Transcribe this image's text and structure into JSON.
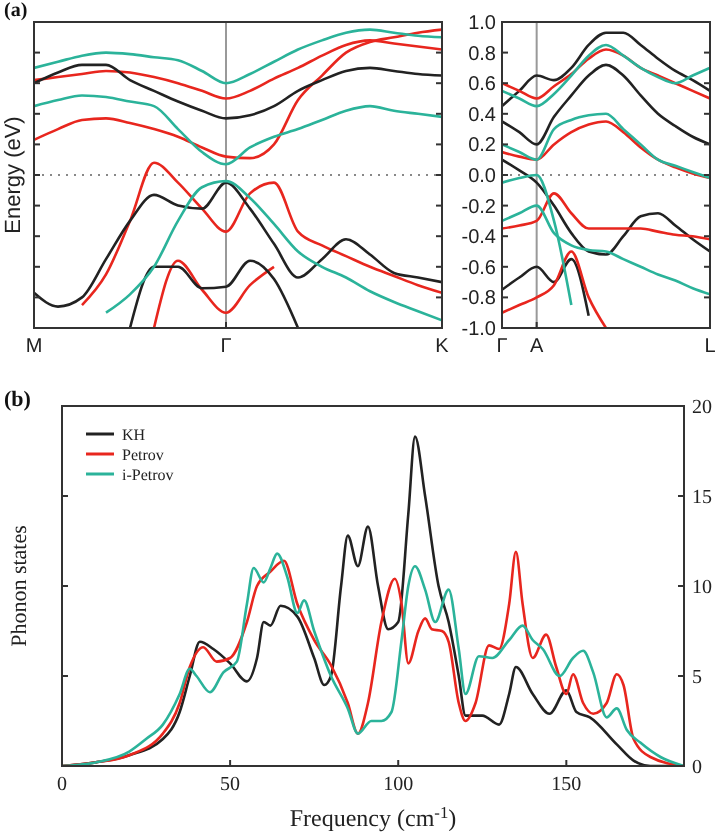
{
  "chart_data": [
    {
      "type": "line",
      "title": "(a)",
      "ylabel": "Energy (eV)",
      "categories": [
        "M",
        null,
        null,
        null,
        null,
        null,
        null,
        null,
        "Γ",
        null,
        null,
        null,
        null,
        null,
        null,
        null,
        null,
        "K"
      ],
      "ylim": [
        -1,
        1
      ],
      "yticks": [
        {
          "value": -1,
          "label": null
        },
        {
          "value": -0.8,
          "label": null
        },
        {
          "value": -0.6,
          "label": null
        },
        {
          "value": -0.4,
          "label": null
        },
        {
          "value": -0.2,
          "label": null
        },
        {
          "value": 0,
          "label": null
        },
        {
          "value": 0.2,
          "label": null
        },
        {
          "value": 0.4,
          "label": null
        },
        {
          "value": 0.6,
          "label": null
        },
        {
          "value": 0.8,
          "label": null
        },
        {
          "value": 1,
          "label": null
        }
      ],
      "tick_labels": "x",
      "ref_lines": [
        {
          "axis": "y",
          "value": 0,
          "line_style": "dotted",
          "color": "#888888"
        },
        {
          "axis": "x",
          "value": "Γ",
          "color": "#999999"
        }
      ],
      "series": [
        {
          "color": "#e8261e",
          "values": [
            0.23,
            0.3,
            0.36,
            0.37,
            0.34,
            0.3,
            0.25,
            0.18,
            0.12,
            0.11,
            0.2,
            0.49,
            0.65,
            0.8,
            0.87,
            0.9,
            0.93,
            0.95
          ]
        },
        {
          "color": "#e8261e",
          "values": [
            null,
            null,
            -0.85,
            -0.65,
            -0.3,
            0.08,
            -0.05,
            -0.22,
            -0.37,
            -0.12,
            -0.05,
            -0.37,
            -0.46,
            -0.53,
            -0.6,
            -0.66,
            -0.72,
            -0.77
          ]
        },
        {
          "color": "#e8261e",
          "values": [
            0.62,
            0.64,
            0.66,
            0.68,
            0.67,
            0.64,
            0.6,
            0.55,
            0.5,
            0.55,
            0.63,
            0.7,
            0.78,
            0.85,
            0.88,
            0.86,
            0.84,
            0.82
          ]
        },
        {
          "color": "#e8261e",
          "values": [
            null,
            null,
            null,
            null,
            null,
            -1.0,
            -0.56,
            -0.75,
            -0.9,
            -0.72,
            -0.6,
            null,
            null,
            null,
            null,
            null,
            null,
            null
          ]
        },
        {
          "color": "#222222",
          "values": [
            -0.77,
            -0.86,
            -0.8,
            -0.55,
            -0.3,
            -0.13,
            -0.2,
            -0.22,
            -0.05,
            -0.22,
            -0.45,
            -0.67,
            -0.55,
            -0.42,
            -0.52,
            -0.64,
            -0.67,
            -0.7
          ]
        },
        {
          "color": "#222222",
          "values": [
            0.6,
            0.67,
            0.72,
            0.72,
            0.62,
            0.55,
            0.48,
            0.42,
            0.37,
            0.39,
            0.45,
            0.55,
            0.62,
            0.68,
            0.7,
            0.68,
            0.66,
            0.65
          ]
        },
        {
          "color": "#222222",
          "values": [
            null,
            null,
            null,
            null,
            -1.0,
            -0.6,
            -0.6,
            -0.74,
            -0.73,
            -0.56,
            -0.68,
            -1.0,
            null,
            null,
            null,
            null,
            null,
            null
          ]
        },
        {
          "color": "#2bb39a",
          "values": [
            null,
            null,
            null,
            -0.9,
            -0.78,
            -0.6,
            -0.3,
            -0.08,
            -0.04,
            -0.15,
            -0.32,
            -0.5,
            -0.6,
            -0.67,
            -0.76,
            -0.83,
            -0.89,
            -0.95
          ]
        },
        {
          "color": "#2bb39a",
          "values": [
            0.45,
            0.49,
            0.52,
            0.51,
            0.48,
            0.45,
            0.3,
            0.15,
            0.07,
            0.18,
            0.25,
            0.3,
            0.36,
            0.42,
            0.45,
            0.42,
            0.4,
            0.38
          ]
        },
        {
          "color": "#2bb39a",
          "values": [
            0.7,
            0.74,
            0.78,
            0.8,
            0.79,
            0.77,
            0.75,
            0.68,
            0.6,
            0.66,
            0.74,
            0.82,
            0.88,
            0.93,
            0.95,
            0.93,
            0.91,
            0.9
          ]
        }
      ]
    },
    {
      "type": "line",
      "categories": [
        "Γ",
        null,
        "A",
        null,
        null,
        null,
        null,
        null,
        null,
        null,
        null,
        null,
        "L"
      ],
      "ylim": [
        -1,
        1
      ],
      "yticks": [
        {
          "value": -1,
          "label": "-1.0"
        },
        {
          "value": -0.8,
          "label": "-0.8"
        },
        {
          "value": -0.6,
          "label": "-0.6"
        },
        {
          "value": -0.4,
          "label": "-0.4"
        },
        {
          "value": -0.2,
          "label": "-0.2"
        },
        {
          "value": 0,
          "label": "0.0"
        },
        {
          "value": 0.2,
          "label": "0.2"
        },
        {
          "value": 0.4,
          "label": "0.4"
        },
        {
          "value": 0.6,
          "label": "0.6"
        },
        {
          "value": 0.8,
          "label": "0.8"
        },
        {
          "value": 1,
          "label": "1.0"
        }
      ],
      "ref_lines": [
        {
          "axis": "y",
          "value": 0,
          "line_style": "dotted",
          "color": "#888888"
        },
        {
          "axis": "x",
          "value": "A",
          "color": "#999999"
        }
      ],
      "series": [
        {
          "color": "#222222",
          "values": [
            0.35,
            0.28,
            0.2,
            0.38,
            0.52,
            0.65,
            0.72,
            0.65,
            0.52,
            0.4,
            0.32,
            0.25,
            0.2
          ]
        },
        {
          "color": "#222222",
          "values": [
            0.1,
            0.03,
            -0.05,
            -0.2,
            -0.38,
            -0.5,
            -0.52,
            -0.4,
            -0.27,
            -0.25,
            -0.33,
            -0.42,
            -0.5
          ]
        },
        {
          "color": "#222222",
          "values": [
            -0.75,
            -0.67,
            -0.6,
            -0.7,
            -0.55,
            -0.92,
            null,
            null,
            null,
            null,
            null,
            null,
            null
          ]
        },
        {
          "color": "#222222",
          "values": [
            0.45,
            0.55,
            0.65,
            0.62,
            0.7,
            0.85,
            0.93,
            0.93,
            0.85,
            0.76,
            0.68,
            0.62,
            0.55
          ]
        },
        {
          "color": "#e8261e",
          "values": [
            0.15,
            0.12,
            0.1,
            0.2,
            0.28,
            0.33,
            0.35,
            0.28,
            0.18,
            0.1,
            0.05,
            0.01,
            -0.02
          ]
        },
        {
          "color": "#e8261e",
          "values": [
            -0.35,
            -0.33,
            -0.3,
            -0.12,
            -0.25,
            -0.35,
            -0.35,
            -0.35,
            -0.35,
            -0.37,
            -0.39,
            -0.4,
            -0.42
          ]
        },
        {
          "color": "#e8261e",
          "values": [
            -0.9,
            -0.85,
            -0.8,
            -0.72,
            -0.5,
            -0.8,
            -1.0,
            null,
            null,
            null,
            null,
            null,
            null
          ]
        },
        {
          "color": "#e8261e",
          "values": [
            0.6,
            0.55,
            0.5,
            0.58,
            0.66,
            0.76,
            0.82,
            0.78,
            0.7,
            0.65,
            0.6,
            0.55,
            0.5
          ]
        },
        {
          "color": "#2bb39a",
          "values": [
            -0.3,
            -0.25,
            -0.2,
            -0.38,
            -0.46,
            -0.49,
            -0.5,
            -0.55,
            -0.6,
            -0.65,
            -0.69,
            -0.74,
            -0.78
          ]
        },
        {
          "color": "#2bb39a",
          "values": [
            0.2,
            0.15,
            0.1,
            0.3,
            0.36,
            0.39,
            0.4,
            0.3,
            0.2,
            0.1,
            0.06,
            0.02,
            -0.02
          ]
        },
        {
          "color": "#2bb39a",
          "values": [
            0.55,
            0.5,
            0.45,
            0.53,
            0.65,
            0.78,
            0.85,
            0.78,
            0.7,
            0.64,
            0.6,
            0.65,
            0.7
          ]
        },
        {
          "color": "#2bb39a",
          "values": [
            -0.05,
            -0.02,
            0.0,
            -0.3,
            -0.85,
            null,
            null,
            null,
            null,
            null,
            null,
            null,
            null
          ]
        }
      ]
    },
    {
      "type": "line",
      "title": "(b)",
      "xlabel": "Frequency (cm$^{-1}$)",
      "ylabel": "Phonon states",
      "xlim": [
        0,
        185
      ],
      "xticks": [
        0,
        50,
        100,
        150
      ],
      "ylim": [
        0,
        20
      ],
      "yticks": [
        0,
        5,
        10,
        15,
        20
      ],
      "legend": "top left",
      "x": [
        0,
        10,
        20,
        30,
        35,
        38,
        41,
        45,
        50,
        55,
        58,
        60,
        62,
        65,
        70,
        75,
        78,
        80,
        83,
        85,
        88,
        91,
        94,
        97,
        100,
        103,
        105,
        108,
        112,
        115,
        118,
        120,
        125,
        130,
        133,
        135,
        140,
        145,
        150,
        153,
        157,
        165,
        170,
        175,
        185
      ],
      "series": [
        {
          "name": "KH",
          "color": "#222222",
          "values": [
            0,
            0.2,
            0.6,
            1.5,
            3,
            5,
            6.9,
            6.5,
            5.7,
            4.7,
            6,
            8,
            7.8,
            8.9,
            8.3,
            6,
            4.5,
            5,
            10,
            12.8,
            11.1,
            13.3,
            10,
            7.6,
            8,
            14,
            18.3,
            15,
            10,
            8,
            5,
            2.8,
            2.8,
            2.3,
            4,
            5.5,
            4,
            2.9,
            4.2,
            3,
            2.7,
            1.2,
            0.3,
            0,
            0
          ]
        },
        {
          "name": "Petrov",
          "color": "#e8261e",
          "x": [
            0,
            10,
            20,
            30,
            35,
            38,
            42,
            46,
            50,
            55,
            58,
            62,
            66,
            70,
            75,
            80,
            85,
            88,
            91,
            95,
            99,
            101,
            103,
            106,
            108,
            110,
            113,
            115,
            118,
            120,
            123,
            127,
            130,
            133,
            135,
            137,
            140,
            144,
            147,
            150,
            152,
            155,
            158,
            162,
            165,
            167,
            170,
            175,
            185
          ],
          "values": [
            0,
            0.2,
            0.6,
            1.8,
            3.5,
            5.5,
            6.6,
            5.8,
            6,
            8,
            10,
            10.8,
            11.4,
            9,
            7,
            5.6,
            3.5,
            1.8,
            3.5,
            8,
            10.4,
            9,
            5.7,
            7.5,
            8.2,
            7.6,
            7.5,
            6.9,
            3.5,
            2.5,
            3.5,
            6.7,
            6.5,
            9,
            11.9,
            9,
            6,
            7.3,
            5.5,
            4,
            5.1,
            3.5,
            2.9,
            3.5,
            5.1,
            4.5,
            1.5,
            0.5,
            0
          ]
        },
        {
          "name": "i-Petrov",
          "color": "#2bb39a",
          "x": [
            0,
            10,
            20,
            25,
            30,
            35,
            38,
            40,
            44,
            48,
            52,
            55,
            57,
            60,
            62,
            64,
            67,
            70,
            72,
            75,
            80,
            85,
            88,
            92,
            95,
            98,
            101,
            103,
            105,
            108,
            111,
            115,
            118,
            120,
            124,
            128,
            133,
            137,
            140,
            143,
            148,
            152,
            155,
            158,
            162,
            165,
            168,
            172,
            178,
            185
          ],
          "values": [
            0,
            0.2,
            0.8,
            1.5,
            2.3,
            4,
            5.4,
            5,
            4.1,
            5.2,
            5.8,
            9,
            11,
            10.2,
            11,
            11.8,
            10.5,
            8.5,
            9.2,
            7.5,
            5,
            3.2,
            1.8,
            2.5,
            2.5,
            3,
            7,
            10,
            11.1,
            9.8,
            8,
            9.8,
            6.5,
            4,
            6.1,
            6,
            7,
            7.8,
            7,
            6.5,
            5,
            6,
            6.4,
            5.2,
            2.7,
            3.2,
            2,
            1.3,
            0.5,
            0
          ]
        }
      ]
    }
  ]
}
